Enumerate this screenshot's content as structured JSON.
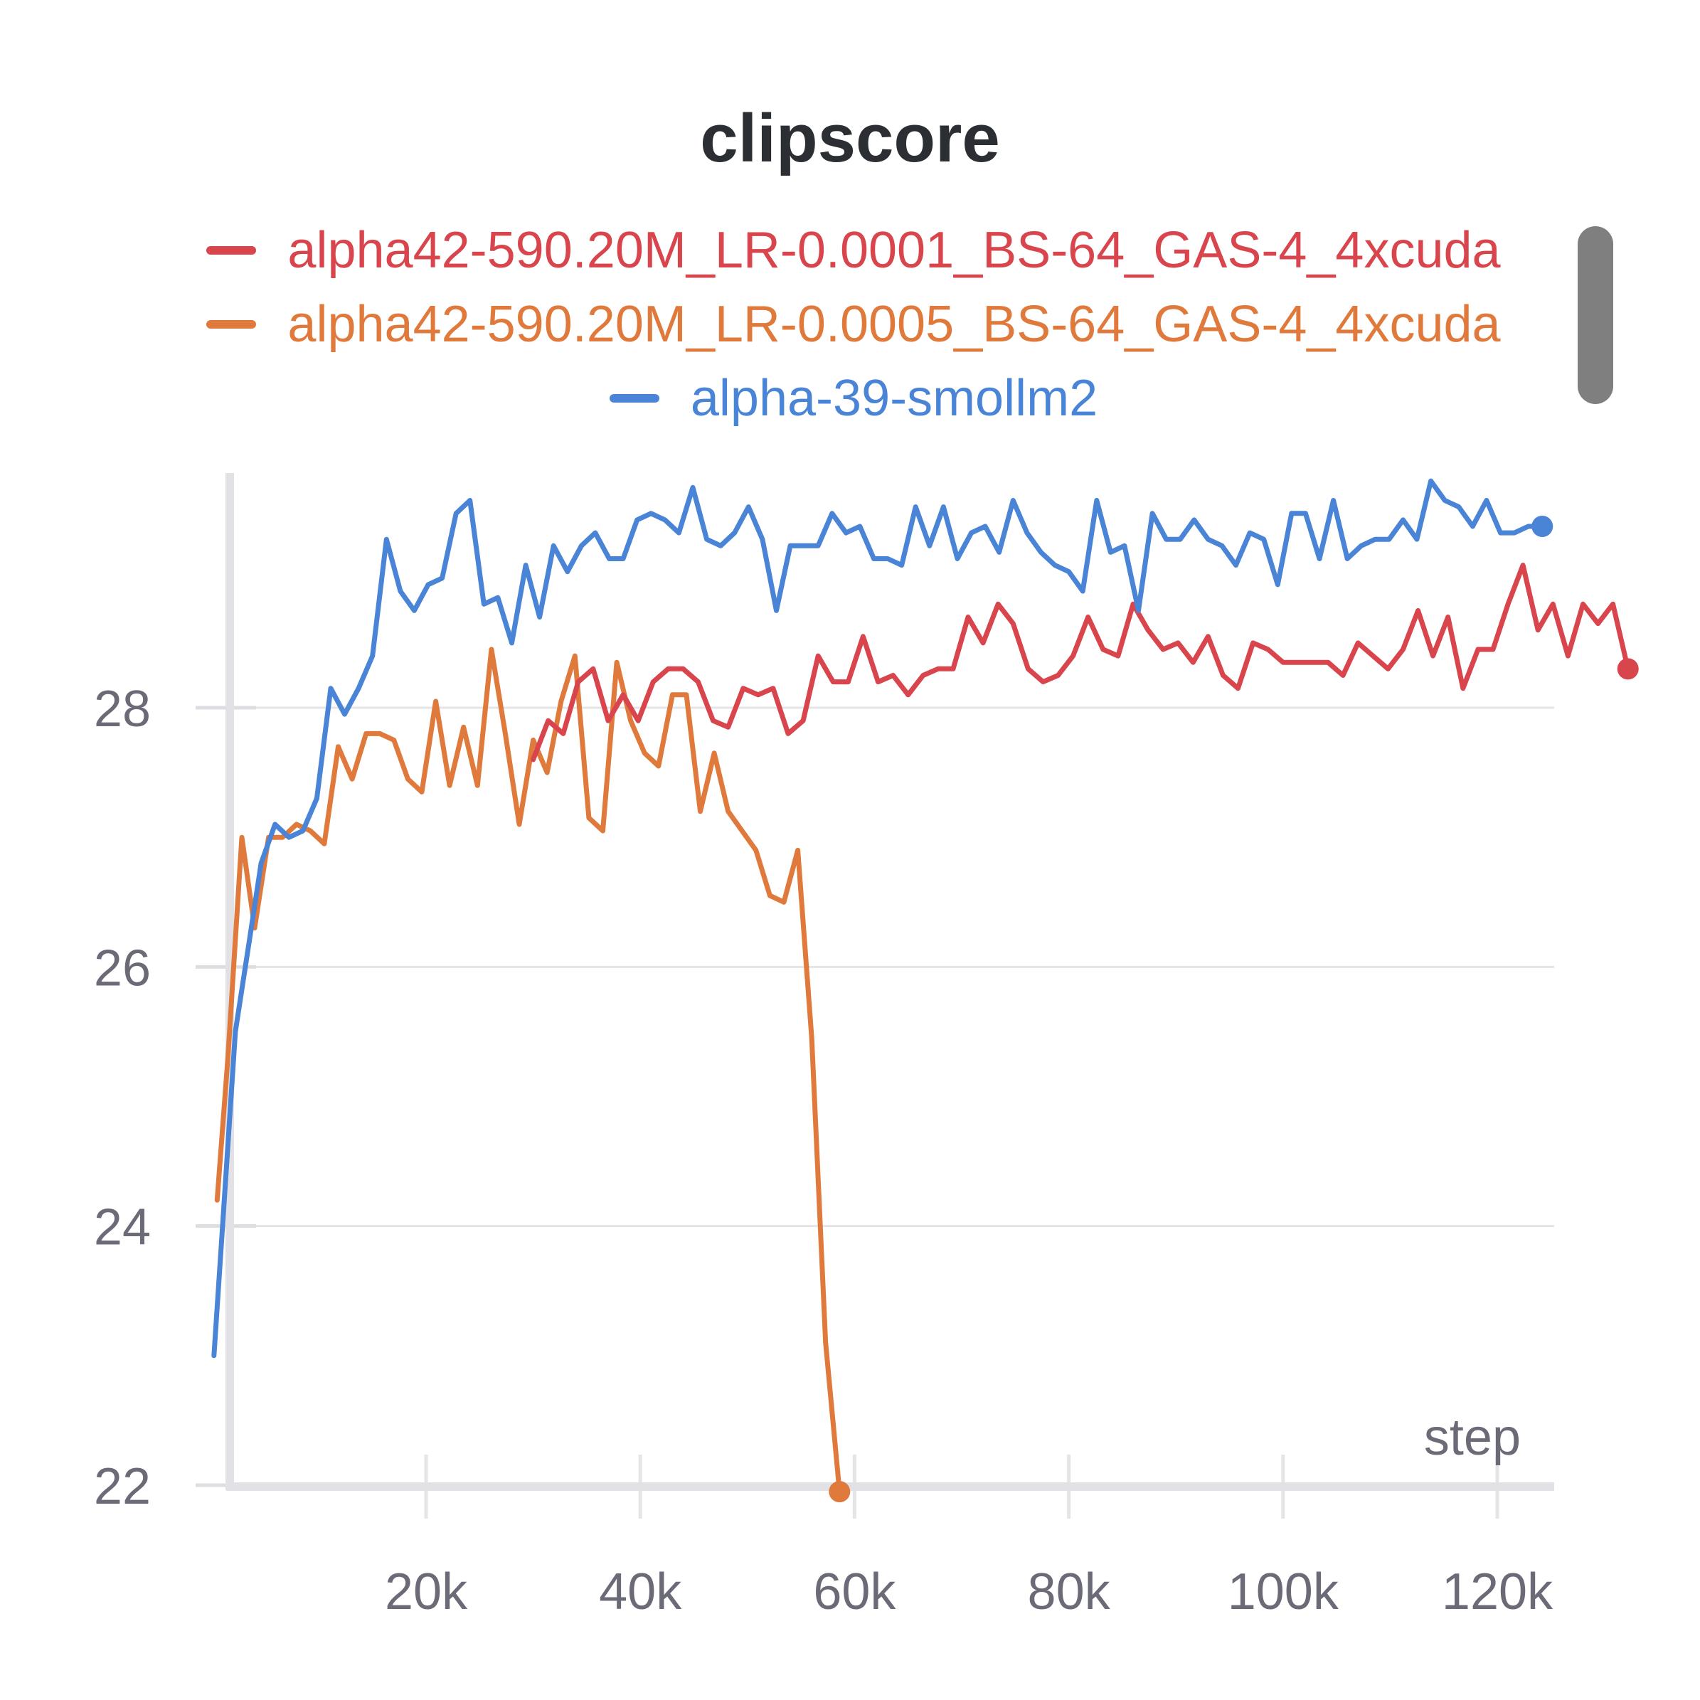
{
  "chart_data": {
    "type": "line",
    "title": "clipscore",
    "xlabel": "step",
    "ylabel": "",
    "xlim": [
      0,
      124000
    ],
    "ylim": [
      22,
      29.9
    ],
    "x_ticks": [
      20000,
      40000,
      60000,
      80000,
      100000,
      120000
    ],
    "x_tick_labels": [
      "20k",
      "40k",
      "60k",
      "80k",
      "100k",
      "120k"
    ],
    "y_ticks": [
      22,
      24,
      26,
      28
    ],
    "y_tick_labels": [
      "22",
      "24",
      "26",
      "28"
    ],
    "grid": true,
    "legend_position": "top",
    "series": [
      {
        "name": "alpha42-590.20M_LR-0.0001_BS-64_GAS-4_4xcuda",
        "color": "#d9454d",
        "points": [
          [
            30000,
            27.6
          ],
          [
            31400,
            27.9
          ],
          [
            32800,
            27.8
          ],
          [
            34200,
            28.2
          ],
          [
            35600,
            28.3
          ],
          [
            37000,
            27.9
          ],
          [
            38400,
            28.1
          ],
          [
            39800,
            27.9
          ],
          [
            41200,
            28.2
          ],
          [
            42600,
            28.3
          ],
          [
            44000,
            28.3
          ],
          [
            45400,
            28.2
          ],
          [
            46800,
            27.9
          ],
          [
            48200,
            27.85
          ],
          [
            49600,
            28.15
          ],
          [
            51000,
            28.1
          ],
          [
            52400,
            28.15
          ],
          [
            53800,
            27.8
          ],
          [
            55200,
            27.9
          ],
          [
            56600,
            28.4
          ],
          [
            58000,
            28.2
          ],
          [
            59400,
            28.2
          ],
          [
            60800,
            28.55
          ],
          [
            62200,
            28.2
          ],
          [
            63600,
            28.25
          ],
          [
            65000,
            28.1
          ],
          [
            66400,
            28.25
          ],
          [
            67800,
            28.3
          ],
          [
            69200,
            28.3
          ],
          [
            70600,
            28.7
          ],
          [
            72000,
            28.5
          ],
          [
            73400,
            28.8
          ],
          [
            74800,
            28.65
          ],
          [
            76200,
            28.3
          ],
          [
            77600,
            28.2
          ],
          [
            79000,
            28.25
          ],
          [
            80400,
            28.4
          ],
          [
            81800,
            28.7
          ],
          [
            83200,
            28.45
          ],
          [
            84600,
            28.4
          ],
          [
            86000,
            28.8
          ],
          [
            87400,
            28.6
          ],
          [
            88800,
            28.45
          ],
          [
            90200,
            28.5
          ],
          [
            91600,
            28.35
          ],
          [
            93000,
            28.55
          ],
          [
            94400,
            28.25
          ],
          [
            95800,
            28.15
          ],
          [
            97200,
            28.5
          ],
          [
            98600,
            28.45
          ],
          [
            100000,
            28.35
          ],
          [
            101400,
            28.35
          ],
          [
            102800,
            28.35
          ],
          [
            104200,
            28.35
          ],
          [
            105600,
            28.25
          ],
          [
            107000,
            28.5
          ],
          [
            108400,
            28.4
          ],
          [
            109800,
            28.3
          ],
          [
            111200,
            28.45
          ],
          [
            112600,
            28.75
          ],
          [
            114000,
            28.4
          ],
          [
            115400,
            28.7
          ],
          [
            116800,
            28.15
          ],
          [
            118200,
            28.45
          ],
          [
            119600,
            28.45
          ],
          [
            121000,
            28.8
          ],
          [
            122400,
            29.1
          ],
          [
            123800,
            28.6
          ],
          [
            125200,
            28.8
          ],
          [
            126600,
            28.4
          ],
          [
            128000,
            28.8
          ],
          [
            129400,
            28.65
          ],
          [
            130800,
            28.8
          ],
          [
            132200,
            28.3
          ]
        ]
      },
      {
        "name": "alpha42-590.20M_LR-0.0005_BS-64_GAS-4_4xcuda",
        "color": "#e07a3c",
        "points": [
          [
            500,
            24.2
          ],
          [
            1500,
            25.3
          ],
          [
            2800,
            27.0
          ],
          [
            4000,
            26.3
          ],
          [
            5300,
            27.0
          ],
          [
            6600,
            27.0
          ],
          [
            7900,
            27.1
          ],
          [
            9200,
            27.05
          ],
          [
            10500,
            26.95
          ],
          [
            11800,
            27.7
          ],
          [
            13100,
            27.45
          ],
          [
            14400,
            27.8
          ],
          [
            15700,
            27.8
          ],
          [
            17000,
            27.75
          ],
          [
            18300,
            27.45
          ],
          [
            19600,
            27.35
          ],
          [
            20900,
            28.05
          ],
          [
            22200,
            27.4
          ],
          [
            23500,
            27.85
          ],
          [
            24800,
            27.4
          ],
          [
            26100,
            28.45
          ],
          [
            27400,
            27.8
          ],
          [
            28700,
            27.1
          ],
          [
            30000,
            27.75
          ],
          [
            31300,
            27.5
          ],
          [
            32600,
            28.05
          ],
          [
            33900,
            28.4
          ],
          [
            35200,
            27.15
          ],
          [
            36500,
            27.05
          ],
          [
            37800,
            28.35
          ],
          [
            39100,
            27.9
          ],
          [
            40400,
            27.65
          ],
          [
            41700,
            27.55
          ],
          [
            43000,
            28.1
          ],
          [
            44300,
            28.1
          ],
          [
            45600,
            27.2
          ],
          [
            46900,
            27.65
          ],
          [
            48200,
            27.2
          ],
          [
            49500,
            27.05
          ],
          [
            50800,
            26.9
          ],
          [
            52100,
            26.55
          ],
          [
            53400,
            26.5
          ],
          [
            54700,
            26.9
          ],
          [
            56000,
            25.45
          ],
          [
            57300,
            23.1
          ],
          [
            58600,
            21.95
          ]
        ]
      },
      {
        "name": "alpha-39-smollm2",
        "color": "#4a84d6",
        "points": [
          [
            200,
            23.0
          ],
          [
            1000,
            24.0
          ],
          [
            2200,
            25.5
          ],
          [
            3500,
            26.2
          ],
          [
            4600,
            26.8
          ],
          [
            5900,
            27.1
          ],
          [
            7200,
            27.0
          ],
          [
            8500,
            27.05
          ],
          [
            9800,
            27.3
          ],
          [
            11100,
            28.15
          ],
          [
            12400,
            27.95
          ],
          [
            13700,
            28.15
          ],
          [
            15000,
            28.4
          ],
          [
            16300,
            29.3
          ],
          [
            17600,
            28.9
          ],
          [
            18900,
            28.75
          ],
          [
            20200,
            28.95
          ],
          [
            21500,
            29.0
          ],
          [
            22800,
            29.5
          ],
          [
            24100,
            29.6
          ],
          [
            25400,
            28.8
          ],
          [
            26700,
            28.85
          ],
          [
            28000,
            28.5
          ],
          [
            29300,
            29.1
          ],
          [
            30600,
            28.7
          ],
          [
            31900,
            29.25
          ],
          [
            33200,
            29.05
          ],
          [
            34500,
            29.25
          ],
          [
            35800,
            29.35
          ],
          [
            37100,
            29.15
          ],
          [
            38400,
            29.15
          ],
          [
            39700,
            29.45
          ],
          [
            41000,
            29.5
          ],
          [
            42300,
            29.45
          ],
          [
            43600,
            29.35
          ],
          [
            44900,
            29.7
          ],
          [
            46200,
            29.3
          ],
          [
            47500,
            29.25
          ],
          [
            48800,
            29.35
          ],
          [
            50100,
            29.55
          ],
          [
            51400,
            29.3
          ],
          [
            52700,
            28.75
          ],
          [
            54000,
            29.25
          ],
          [
            55300,
            29.25
          ],
          [
            56600,
            29.25
          ],
          [
            57900,
            29.5
          ],
          [
            59200,
            29.35
          ],
          [
            60500,
            29.4
          ],
          [
            61800,
            29.15
          ],
          [
            63100,
            29.15
          ],
          [
            64400,
            29.1
          ],
          [
            65700,
            29.55
          ],
          [
            67000,
            29.25
          ],
          [
            68300,
            29.55
          ],
          [
            69600,
            29.15
          ],
          [
            70900,
            29.35
          ],
          [
            72200,
            29.4
          ],
          [
            73500,
            29.2
          ],
          [
            74800,
            29.6
          ],
          [
            76100,
            29.35
          ],
          [
            77400,
            29.2
          ],
          [
            78700,
            29.1
          ],
          [
            80000,
            29.05
          ],
          [
            81300,
            28.9
          ],
          [
            82600,
            29.6
          ],
          [
            83900,
            29.2
          ],
          [
            85200,
            29.25
          ],
          [
            86500,
            28.75
          ],
          [
            87800,
            29.5
          ],
          [
            89100,
            29.3
          ],
          [
            90400,
            29.3
          ],
          [
            91700,
            29.45
          ],
          [
            93000,
            29.3
          ],
          [
            94300,
            29.25
          ],
          [
            95600,
            29.1
          ],
          [
            96900,
            29.35
          ],
          [
            98200,
            29.3
          ],
          [
            99500,
            28.95
          ],
          [
            100800,
            29.5
          ],
          [
            102100,
            29.5
          ],
          [
            103400,
            29.15
          ],
          [
            104700,
            29.6
          ],
          [
            106000,
            29.15
          ],
          [
            107300,
            29.25
          ],
          [
            108600,
            29.3
          ],
          [
            109900,
            29.3
          ],
          [
            111200,
            29.45
          ],
          [
            112500,
            29.3
          ],
          [
            113800,
            29.75
          ],
          [
            115100,
            29.6
          ],
          [
            116400,
            29.55
          ],
          [
            117700,
            29.4
          ],
          [
            119000,
            29.6
          ],
          [
            120300,
            29.35
          ],
          [
            121600,
            29.35
          ],
          [
            122900,
            29.4
          ],
          [
            124200,
            29.4
          ]
        ]
      }
    ]
  }
}
